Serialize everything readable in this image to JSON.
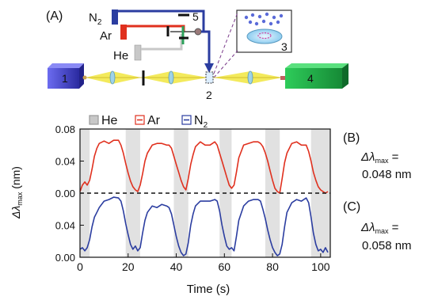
{
  "panel_a": {
    "label": "(A)",
    "gas_labels": {
      "n2": "N",
      "n2_sub": "2",
      "ar": "Ar",
      "he": "He"
    },
    "component_numbers": {
      "source": "1",
      "cell": "2",
      "inset": "3",
      "detector": "4",
      "valve": "5"
    }
  },
  "colors": {
    "he": "#c8c8c8",
    "ar": "#e0301e",
    "n2": "#2b3da0",
    "source_box": "#3a3ab8",
    "detector_box": "#22b04a",
    "beam": "#f2e84a"
  },
  "legend": [
    {
      "name": "He",
      "color": "#c8c8c8"
    },
    {
      "name": "Ar",
      "color": "#e0301e"
    },
    {
      "name": "N",
      "sub": "2",
      "color": "#2b3da0"
    }
  ],
  "panel_b": {
    "label": "(B)",
    "value_prefix": "Δλ",
    "value_sub": "max",
    "value_eq": " =",
    "value": "0.048 nm"
  },
  "panel_c": {
    "label": "(C)",
    "value_prefix": "Δλ",
    "value_sub": "max",
    "value_eq": " =",
    "value": "0.058 nm"
  },
  "chart_data": {
    "type": "line",
    "xlabel": "Time (s)",
    "ylabel": "Δλ",
    "ylabel_sub": "max",
    "ylabel_unit": " (nm)",
    "xlim": [
      0,
      104
    ],
    "xticks": [
      0,
      20,
      40,
      60,
      80,
      100
    ],
    "x_tick_labels": [
      "0",
      "20",
      "40",
      "60",
      "80",
      "100"
    ],
    "upper_ylim": [
      0,
      0.08
    ],
    "upper_yticks": [
      "0.00",
      "0.04",
      "0.08"
    ],
    "lower_ylim": [
      0,
      0.08
    ],
    "lower_yticks": [
      "0.00",
      "0.04"
    ],
    "lower_yticks_values": [
      0,
      0.04
    ],
    "he_bands": [
      [
        0,
        4
      ],
      [
        19,
        25
      ],
      [
        39,
        45
      ],
      [
        58,
        63
      ],
      [
        77,
        83
      ],
      [
        96,
        104
      ]
    ],
    "series": [
      {
        "name": "Ar",
        "panel": "upper",
        "x": [
          0,
          1,
          2,
          3,
          4,
          5,
          6,
          7,
          8,
          10,
          12,
          14,
          16,
          17,
          18,
          19,
          20,
          21,
          22,
          23,
          24,
          25,
          26,
          27,
          28,
          30,
          32,
          34,
          36,
          37,
          38,
          39,
          40,
          41,
          42,
          43,
          44,
          45,
          46,
          47,
          48,
          50,
          52,
          54,
          56,
          57,
          58,
          59,
          60,
          61,
          62,
          63,
          64,
          65,
          66,
          68,
          70,
          72,
          74,
          75,
          76,
          77,
          78,
          79,
          80,
          81,
          82,
          83,
          84,
          85,
          86,
          88,
          90,
          92,
          94,
          95,
          96,
          97,
          98,
          99,
          100,
          101,
          102,
          103
        ],
        "values": [
          0.002,
          0.01,
          0.014,
          0.01,
          0.016,
          0.03,
          0.046,
          0.056,
          0.062,
          0.065,
          0.062,
          0.066,
          0.066,
          0.06,
          0.05,
          0.037,
          0.025,
          0.015,
          0.008,
          0.004,
          0.002,
          0.01,
          0.024,
          0.04,
          0.05,
          0.06,
          0.062,
          0.062,
          0.06,
          0.06,
          0.056,
          0.046,
          0.036,
          0.026,
          0.016,
          0.008,
          0.004,
          0.018,
          0.036,
          0.048,
          0.058,
          0.064,
          0.06,
          0.06,
          0.064,
          0.06,
          0.05,
          0.04,
          0.03,
          0.02,
          0.01,
          0.006,
          0.01,
          0.026,
          0.044,
          0.06,
          0.062,
          0.064,
          0.064,
          0.062,
          0.058,
          0.05,
          0.04,
          0.028,
          0.016,
          0.006,
          0.002,
          0.0,
          0.018,
          0.038,
          0.05,
          0.062,
          0.064,
          0.06,
          0.06,
          0.052,
          0.04,
          0.026,
          0.016,
          0.008,
          0.004,
          0.002,
          0.0,
          0.002
        ]
      },
      {
        "name": "N",
        "panel": "lower",
        "x": [
          0,
          1,
          2,
          3,
          4,
          5,
          6,
          7,
          8,
          10,
          12,
          14,
          16,
          17,
          18,
          19,
          20,
          21,
          22,
          23,
          24,
          25,
          26,
          27,
          28,
          30,
          32,
          34,
          36,
          37,
          38,
          39,
          40,
          41,
          42,
          43,
          44,
          45,
          46,
          47,
          48,
          50,
          52,
          54,
          56,
          57,
          58,
          59,
          60,
          61,
          62,
          63,
          64,
          65,
          66,
          68,
          70,
          72,
          74,
          75,
          76,
          77,
          78,
          79,
          80,
          81,
          82,
          83,
          84,
          85,
          86,
          88,
          90,
          92,
          94,
          95,
          96,
          97,
          98,
          99,
          100,
          101,
          102,
          103
        ],
        "values": [
          0.01,
          0.012,
          0.008,
          0.012,
          0.022,
          0.038,
          0.05,
          0.056,
          0.062,
          0.07,
          0.072,
          0.075,
          0.074,
          0.07,
          0.058,
          0.042,
          0.028,
          0.016,
          0.01,
          0.014,
          0.008,
          0.012,
          0.03,
          0.046,
          0.056,
          0.064,
          0.062,
          0.066,
          0.064,
          0.062,
          0.054,
          0.04,
          0.026,
          0.014,
          0.006,
          0.002,
          0.004,
          0.018,
          0.04,
          0.054,
          0.064,
          0.07,
          0.07,
          0.07,
          0.072,
          0.07,
          0.058,
          0.04,
          0.026,
          0.014,
          0.01,
          0.012,
          0.008,
          0.026,
          0.046,
          0.064,
          0.07,
          0.072,
          0.072,
          0.07,
          0.06,
          0.048,
          0.034,
          0.022,
          0.012,
          0.006,
          0.002,
          0.004,
          0.016,
          0.038,
          0.056,
          0.068,
          0.072,
          0.07,
          0.074,
          0.068,
          0.05,
          0.03,
          0.016,
          0.008,
          0.01,
          0.006,
          0.012,
          0.006
        ]
      }
    ]
  }
}
